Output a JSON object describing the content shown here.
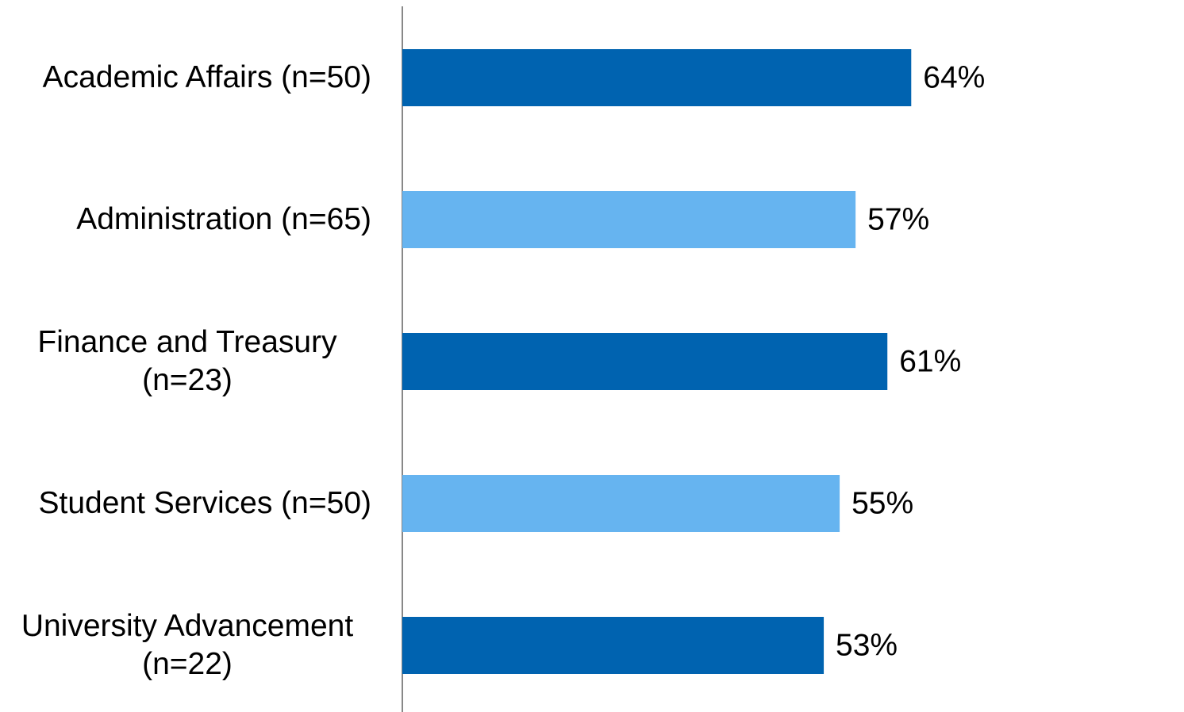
{
  "chart_data": {
    "type": "bar",
    "orientation": "horizontal",
    "categories": [
      "Academic Affairs (n=50)",
      "Administration (n=65)",
      "Finance and Treasury (n=23)",
      "Student Services (n=50)",
      "University Advancement (n=22)"
    ],
    "values": [
      64,
      57,
      61,
      55,
      53
    ],
    "value_labels": [
      "64%",
      "57%",
      "61%",
      "55%",
      "53%"
    ],
    "colors": [
      "#0063b0",
      "#66b4f0",
      "#0063b0",
      "#66b4f0",
      "#0063b0"
    ],
    "xlim": [
      0,
      100
    ]
  }
}
